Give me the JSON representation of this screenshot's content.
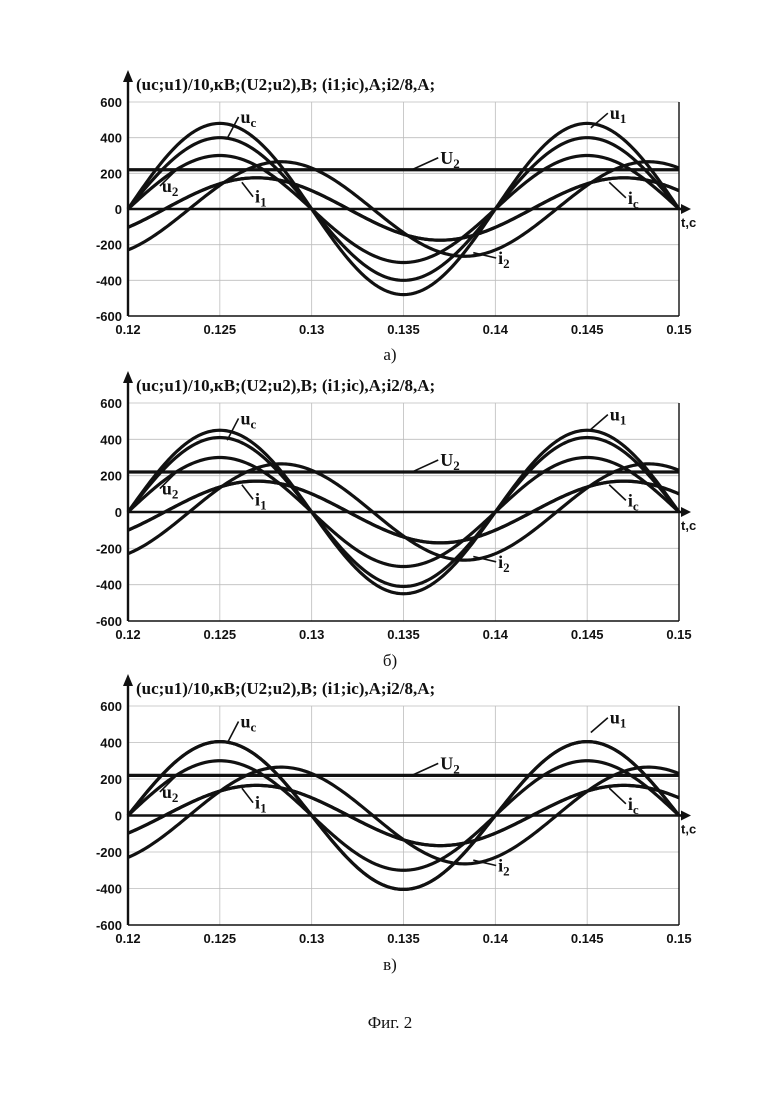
{
  "figure_caption": "Фиг. 2",
  "chart_data": [
    {
      "type": "line",
      "panel_label": "а)",
      "title": "(uc;u1)/10,кВ;(U2;u2),В; (i1;ic),A;i2/8,A;",
      "xlabel": "t,c",
      "xlim": [
        0.12,
        0.15
      ],
      "ylim": [
        -600,
        600
      ],
      "xticks": [
        "0.12",
        "0.125",
        "0.13",
        "0.135",
        "0.14",
        "0.145",
        "0.15"
      ],
      "yticks": [
        "600",
        "400",
        "200",
        "0",
        "-200",
        "-400",
        "-600"
      ],
      "grid": true,
      "series": [
        {
          "name": "uc",
          "kind": "sine",
          "amplitude": 400,
          "phase_deg": 0
        },
        {
          "name": "u1",
          "kind": "sine",
          "amplitude": 480,
          "phase_deg": 0
        },
        {
          "name": "u2",
          "kind": "sine",
          "amplitude": 300,
          "phase_deg": 0
        },
        {
          "name": "U2",
          "kind": "constant",
          "value": 220
        },
        {
          "name": "i1",
          "kind": "sine",
          "amplitude": 175,
          "phase_deg": -36
        },
        {
          "name": "ic",
          "kind": "sine",
          "amplitude": 175,
          "phase_deg": -36
        },
        {
          "name": "i2",
          "kind": "sine",
          "amplitude": 265,
          "phase_deg": -60
        }
      ],
      "labels": {
        "uc": "uc",
        "u1": "u1",
        "u2": "u2",
        "U2": "U2",
        "i1": "i1",
        "ic": "ic",
        "i2": "i2"
      }
    },
    {
      "type": "line",
      "panel_label": "б)",
      "title": "(uc;u1)/10,кВ;(U2;u2),В; (i1;ic),A;i2/8,A;",
      "xlabel": "t,c",
      "xlim": [
        0.12,
        0.15
      ],
      "ylim": [
        -600,
        600
      ],
      "xticks": [
        "0.12",
        "0.125",
        "0.13",
        "0.135",
        "0.14",
        "0.145",
        "0.15"
      ],
      "yticks": [
        "600",
        "400",
        "200",
        "0",
        "-200",
        "-400",
        "-600"
      ],
      "grid": true,
      "series": [
        {
          "name": "uc",
          "kind": "sine",
          "amplitude": 410,
          "phase_deg": 0
        },
        {
          "name": "u1",
          "kind": "sine",
          "amplitude": 450,
          "phase_deg": 0
        },
        {
          "name": "u2",
          "kind": "sine",
          "amplitude": 300,
          "phase_deg": 0
        },
        {
          "name": "U2",
          "kind": "constant",
          "value": 220
        },
        {
          "name": "i1",
          "kind": "sine",
          "amplitude": 170,
          "phase_deg": -36
        },
        {
          "name": "ic",
          "kind": "sine",
          "amplitude": 170,
          "phase_deg": -36
        },
        {
          "name": "i2",
          "kind": "sine",
          "amplitude": 265,
          "phase_deg": -60
        }
      ],
      "labels": {
        "uc": "uc",
        "u1": "u1",
        "u2": "u2",
        "U2": "U2",
        "i1": "i1",
        "ic": "ic",
        "i2": "i2"
      }
    },
    {
      "type": "line",
      "panel_label": "в)",
      "title": "(uc;u1)/10,кВ;(U2;u2),В; (i1;ic),A;i2/8,A;",
      "xlabel": "t,c",
      "xlim": [
        0.12,
        0.15
      ],
      "ylim": [
        -600,
        600
      ],
      "xticks": [
        "0.12",
        "0.125",
        "0.13",
        "0.135",
        "0.14",
        "0.145",
        "0.15"
      ],
      "yticks": [
        "600",
        "400",
        "200",
        "0",
        "-200",
        "-400",
        "-600"
      ],
      "grid": true,
      "series": [
        {
          "name": "uc",
          "kind": "sine",
          "amplitude": 405,
          "phase_deg": 0
        },
        {
          "name": "u1",
          "kind": "sine",
          "amplitude": 405,
          "phase_deg": 0
        },
        {
          "name": "u2",
          "kind": "sine",
          "amplitude": 300,
          "phase_deg": 0
        },
        {
          "name": "U2",
          "kind": "constant",
          "value": 220
        },
        {
          "name": "i1",
          "kind": "sine",
          "amplitude": 165,
          "phase_deg": -36
        },
        {
          "name": "ic",
          "kind": "sine",
          "amplitude": 165,
          "phase_deg": -36
        },
        {
          "name": "i2",
          "kind": "sine",
          "amplitude": 265,
          "phase_deg": -60
        }
      ],
      "labels": {
        "uc": "uc",
        "u1": "u1",
        "u2": "u2",
        "U2": "U2",
        "i1": "i1",
        "ic": "ic",
        "i2": "i2"
      }
    }
  ]
}
